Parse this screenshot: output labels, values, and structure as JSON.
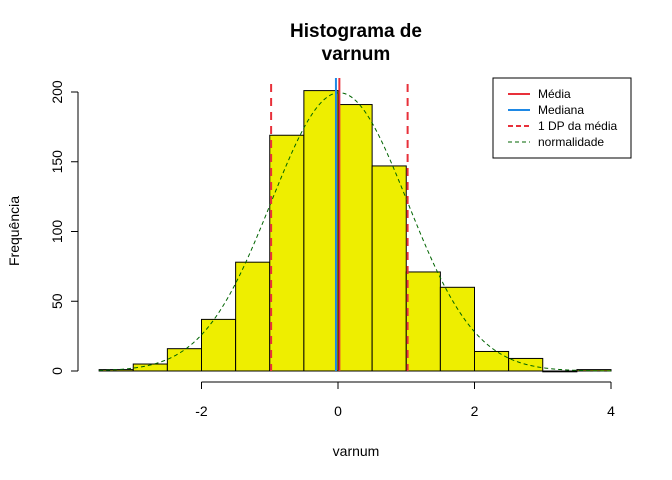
{
  "chart_data": {
    "type": "bar",
    "title": [
      "Histograma de",
      "varnum"
    ],
    "xlabel": "varnum",
    "ylabel": "Frequência",
    "xlim": [
      -3.5,
      4.0
    ],
    "ylim": [
      0,
      200
    ],
    "x_ticks": [
      -2,
      0,
      2,
      4
    ],
    "x_tick_labels": [
      "-2",
      "0",
      "2",
      "4"
    ],
    "y_ticks": [
      0,
      50,
      100,
      150,
      200
    ],
    "y_tick_labels": [
      "0",
      "50",
      "100",
      "150",
      "200"
    ],
    "bin_width": 0.5,
    "bins": [
      {
        "start": -3.5,
        "end": -3.0,
        "count": 1
      },
      {
        "start": -3.0,
        "end": -2.5,
        "count": 5
      },
      {
        "start": -2.5,
        "end": -2.0,
        "count": 16
      },
      {
        "start": -2.0,
        "end": -1.5,
        "count": 37
      },
      {
        "start": -1.5,
        "end": -1.0,
        "count": 78
      },
      {
        "start": -1.0,
        "end": -0.5,
        "count": 169
      },
      {
        "start": -0.5,
        "end": 0.0,
        "count": 201
      },
      {
        "start": 0.0,
        "end": 0.5,
        "count": 191
      },
      {
        "start": 0.5,
        "end": 1.0,
        "count": 147
      },
      {
        "start": 1.0,
        "end": 1.5,
        "count": 71
      },
      {
        "start": 1.5,
        "end": 2.0,
        "count": 60
      },
      {
        "start": 2.0,
        "end": 2.5,
        "count": 14
      },
      {
        "start": 2.5,
        "end": 3.0,
        "count": 9
      },
      {
        "start": 3.0,
        "end": 3.5,
        "count": 0
      },
      {
        "start": 3.5,
        "end": 4.0,
        "count": 1
      }
    ],
    "bar_color": "#EEEE00",
    "mean": 0.02,
    "median": -0.03,
    "sd_lines": [
      -0.98,
      1.02
    ],
    "normal_curve": {
      "mean": 0.02,
      "sd": 1.0,
      "n": 1000,
      "bin_width": 0.5
    },
    "reference_lines": [
      {
        "name": "Média",
        "color": "#E8303A",
        "style": "solid"
      },
      {
        "name": "Mediana",
        "color": "#1E88E5",
        "style": "solid"
      },
      {
        "name": "1 DP da média",
        "color": "#E8303A",
        "style": "dashed"
      },
      {
        "name": "normalidade",
        "color": "#006400",
        "style": "dashed"
      }
    ],
    "legend_position": "top-right",
    "grid": false
  }
}
